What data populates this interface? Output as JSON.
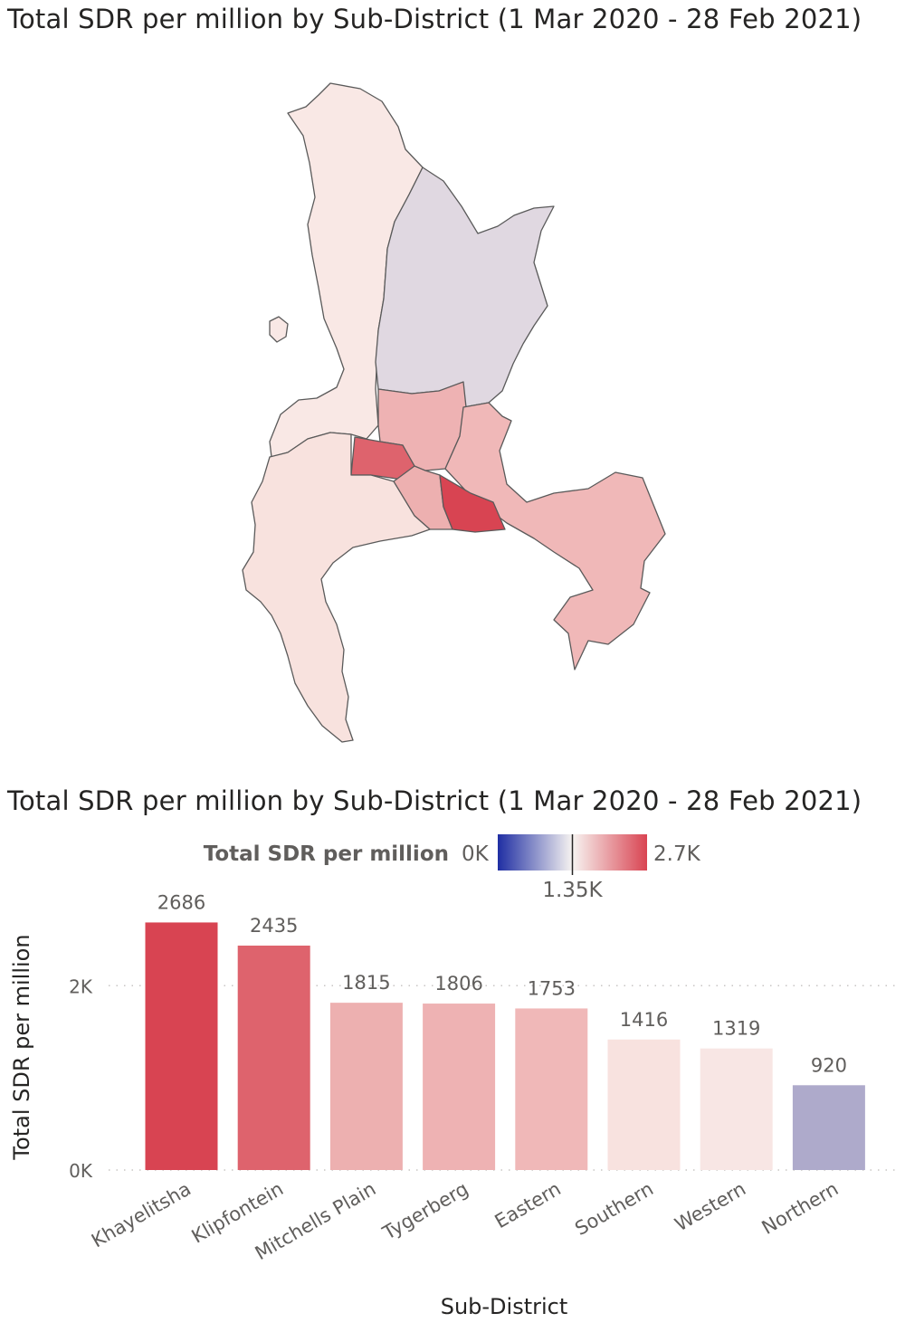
{
  "map_title": "Total SDR per million by Sub-District (1 Mar 2020 - 28 Feb 2021)",
  "bar_title": "Total SDR per million by Sub-District (1 Mar 2020 - 28 Feb 2021)",
  "legend": {
    "title": "Total SDR per million",
    "min_label": "0K",
    "mid_label": "1.35K",
    "max_label": "2.7K",
    "min": 0,
    "mid": 1350,
    "max": 2700,
    "colors": [
      "#1f2ea3",
      "#f7f4f1",
      "#d94452"
    ]
  },
  "chart_data": {
    "type": "bar",
    "title": "",
    "xlabel": "Sub-District",
    "ylabel": "Total SDR per million",
    "ylim": [
      0,
      2700
    ],
    "yticks": [
      0,
      2000
    ],
    "ytick_labels": [
      "0K",
      "2K"
    ],
    "grid": true,
    "categories": [
      "Khayelitsha",
      "Klipfontein",
      "Mitchells Plain",
      "Tygerberg",
      "Eastern",
      "Southern",
      "Western",
      "Northern"
    ],
    "values": [
      2686,
      2435,
      1815,
      1806,
      1753,
      1416,
      1319,
      920
    ],
    "colors": [
      "#d84452",
      "#de636d",
      "#edb0b0",
      "#eeb2b3",
      "#f0b8b8",
      "#f8e2df",
      "#f8e6e4",
      "#aeaacb"
    ]
  },
  "map_regions": [
    {
      "name": "Western",
      "value": 1319,
      "color": "#f9e8e5"
    },
    {
      "name": "Northern",
      "value": 920,
      "color": "#e0d8e1"
    },
    {
      "name": "Tygerberg",
      "value": 1806,
      "color": "#eeb2b3"
    },
    {
      "name": "Eastern",
      "value": 1753,
      "color": "#f0b8b8"
    },
    {
      "name": "Klipfontein",
      "value": 2435,
      "color": "#de636d"
    },
    {
      "name": "Mitchells Plain",
      "value": 1815,
      "color": "#edb0b0"
    },
    {
      "name": "Khayelitsha",
      "value": 2686,
      "color": "#d84452"
    },
    {
      "name": "Southern",
      "value": 1416,
      "color": "#f8e2de"
    }
  ]
}
